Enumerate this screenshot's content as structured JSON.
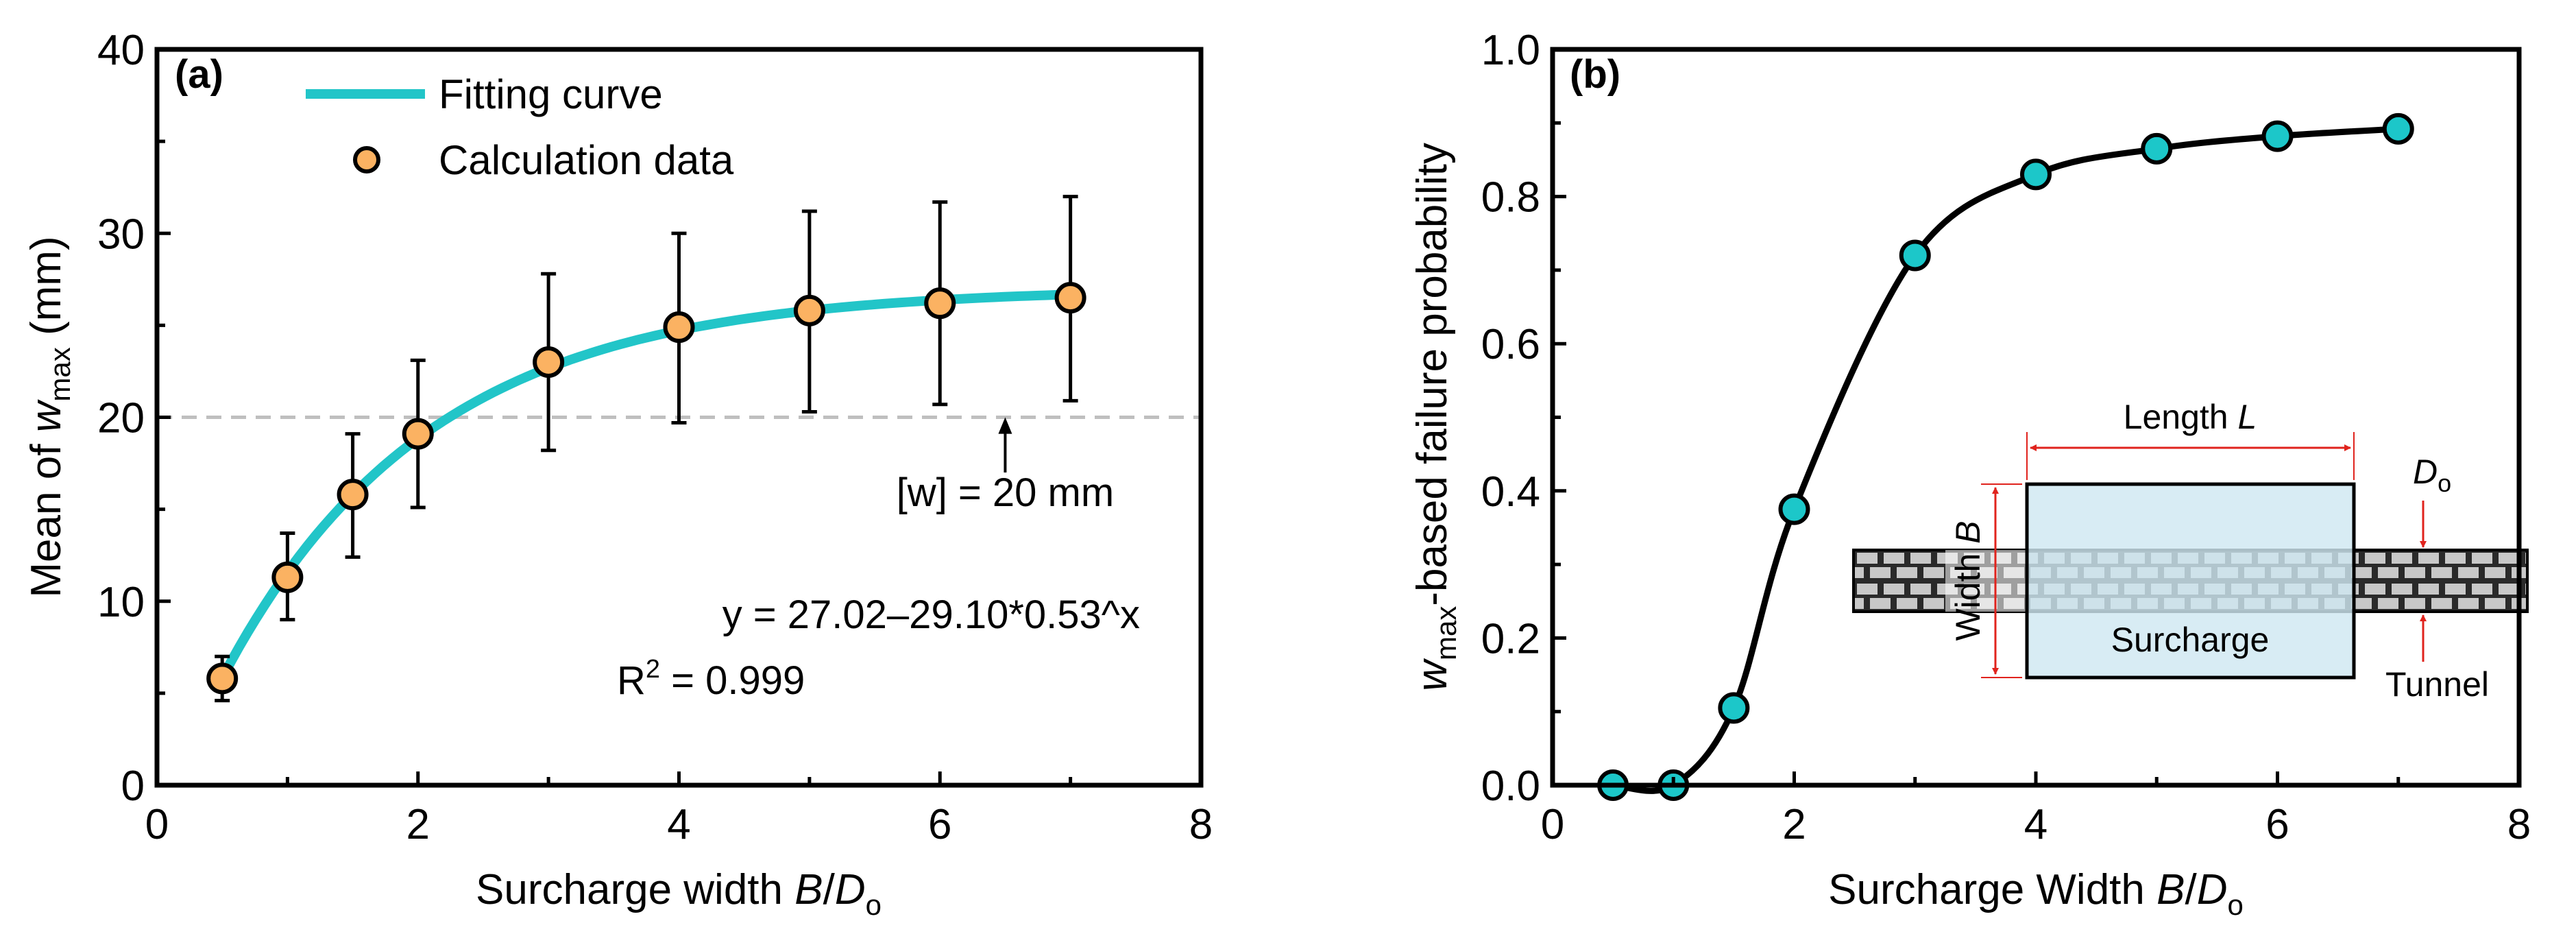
{
  "colors": {
    "fit": "#22c5c8",
    "marker_a": "#fbb262",
    "marker_b": "#1cc7c9",
    "line_b": "#000000",
    "dash": "#bfbfbf",
    "surcharge": "#cfe8f1",
    "arrow": "#e0231d"
  },
  "chart_data": [
    {
      "type": "scatter",
      "panel": "(a)",
      "xlabel": {
        "prefix": "Surcharge width ",
        "var": "B",
        "slash": "/",
        "var2": "D",
        "sub": "o"
      },
      "ylabel": {
        "prefix": "Mean of ",
        "var": "w",
        "sub": "max",
        "suffix": " (mm)"
      },
      "xlim": [
        0,
        8
      ],
      "ylim": [
        0,
        40
      ],
      "xticks": [
        "0",
        "2",
        "4",
        "6",
        "8"
      ],
      "yticks": [
        "0",
        "10",
        "20",
        "30",
        "40"
      ],
      "legend": {
        "placement": "top-left",
        "fit_label": "Fitting curve",
        "data_label": "Calculation data"
      },
      "x": [
        0.5,
        1,
        1.5,
        2,
        3,
        4,
        5,
        6,
        7
      ],
      "y": [
        5.8,
        11.3,
        15.8,
        19.1,
        23.0,
        24.9,
        25.8,
        26.2,
        26.5
      ],
      "err_low": [
        4.6,
        9.0,
        12.4,
        15.1,
        18.2,
        19.7,
        20.3,
        20.7,
        20.9
      ],
      "err_high": [
        7.0,
        13.7,
        19.1,
        23.1,
        27.8,
        30.0,
        31.2,
        31.7,
        32.0
      ],
      "fit": {
        "a": 27.02,
        "b": 29.1,
        "c": 0.53,
        "x_range": [
          0.5,
          7
        ]
      },
      "threshold": {
        "value": 20,
        "label": "[w] = 20 mm",
        "arrow_x": 6.5
      },
      "equation": "y = 27.02–29.10*0.53^x",
      "r2": {
        "prefix": "R",
        "sup": "2",
        "suffix": " = 0.999"
      }
    },
    {
      "type": "line",
      "panel": "(b)",
      "xlabel": {
        "prefix": "Surcharge Width ",
        "var": "B",
        "slash": "/",
        "var2": "D",
        "sub": "o"
      },
      "ylabel": {
        "var": "w",
        "sub": "max",
        "suffix": "-based failure probability"
      },
      "xlim": [
        0,
        8
      ],
      "ylim": [
        0,
        1.0
      ],
      "xticks": [
        "0",
        "2",
        "4",
        "6",
        "8"
      ],
      "yticks": [
        "0.0",
        "0.2",
        "0.4",
        "0.6",
        "0.8",
        "1.0"
      ],
      "x": [
        0.5,
        1,
        1.5,
        2,
        3,
        4,
        5,
        6,
        7
      ],
      "y": [
        0.0,
        0.0,
        0.105,
        0.375,
        0.72,
        0.83,
        0.865,
        0.882,
        0.892
      ],
      "inset": {
        "length": "Length ",
        "length_var": "L",
        "width": "Width ",
        "width_var": "B",
        "surcharge": "Surcharge",
        "d": "D",
        "d_sub": "o",
        "tunnel": "Tunnel"
      }
    }
  ]
}
